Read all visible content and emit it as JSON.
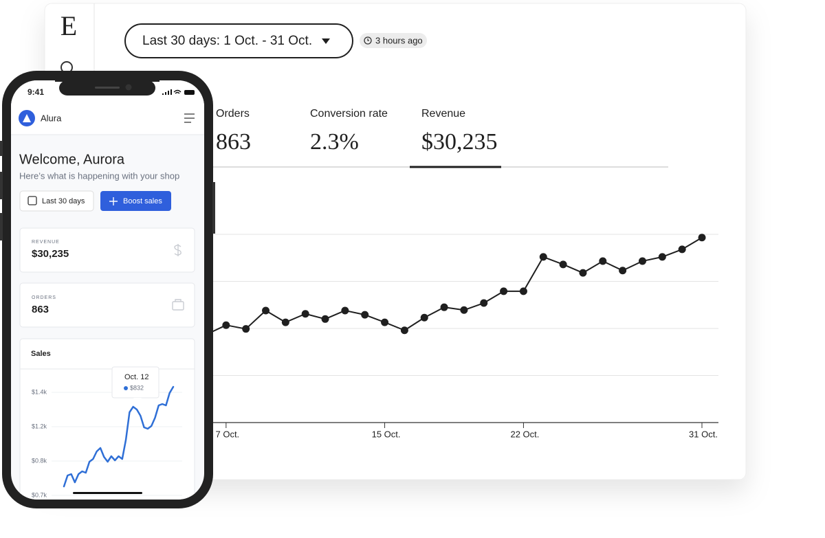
{
  "desktop": {
    "logo": "E",
    "date_range": "Last 30 days: 1 Oct. - 31 Oct.",
    "updated": "3 hours ago",
    "metrics": [
      {
        "label": "Orders",
        "value": "863"
      },
      {
        "label": "Conversion rate",
        "value": "2.3%"
      },
      {
        "label": "Revenue",
        "value": "$30,235"
      }
    ]
  },
  "phone": {
    "time": "9:41",
    "app_name": "Alura",
    "welcome": "Welcome, Aurora",
    "subtitle": "Here’s what is happening with your shop",
    "buttons": [
      "Last 30 days",
      "Boost sales"
    ],
    "cards": [
      {
        "label": "REVENUE",
        "value": "$30,235"
      },
      {
        "label": "ORDERS",
        "value": "863"
      }
    ]
  },
  "chart_data": [
    {
      "type": "line",
      "color": "#1f1f1f",
      "x": [
        6,
        7,
        8,
        9,
        10,
        11,
        12,
        13,
        14,
        15,
        16,
        17,
        18,
        19,
        20,
        21,
        22,
        23,
        24,
        25,
        26,
        27,
        28,
        29,
        30,
        31
      ],
      "values": [
        187,
        207,
        199,
        238,
        213,
        231,
        220,
        238,
        229,
        213,
        196,
        223,
        245,
        239,
        254,
        279,
        279,
        352,
        336,
        318,
        343,
        323,
        343,
        352,
        368,
        393
      ],
      "xlim": [
        6,
        31
      ],
      "xticks": [
        {
          "value": 7,
          "label": "7 Oct."
        },
        {
          "value": 15,
          "label": "15 Oct."
        },
        {
          "value": 22,
          "label": "22 Oct."
        },
        {
          "value": 31,
          "label": "31 Oct."
        }
      ],
      "ylim": [
        0,
        400
      ],
      "yticks": [
        100,
        200,
        300,
        400
      ],
      "grid": true
    },
    {
      "type": "line",
      "title": "Sales",
      "color": "#2f6fd6",
      "y_labels": [
        "$1.4k",
        "$1.2k",
        "$0.8k",
        "$0.7k"
      ],
      "values": [
        19,
        35,
        37,
        25,
        37,
        41,
        39,
        55,
        59,
        70,
        75,
        62,
        55,
        63,
        57,
        63,
        59,
        87,
        127,
        135,
        131,
        122,
        105,
        103,
        107,
        119,
        137,
        139,
        137,
        155,
        164
      ],
      "ylim": [
        0,
        170
      ],
      "tooltip": {
        "date": "Oct. 12",
        "value": "$832"
      }
    }
  ]
}
